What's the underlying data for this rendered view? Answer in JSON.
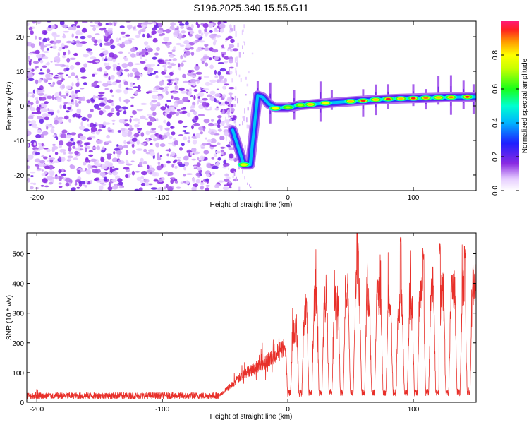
{
  "title": "S196.2025.340.15.55.G11",
  "chart_data": [
    {
      "type": "heatmap",
      "name": "spectrogram",
      "xlabel": "Height of straight line (km)",
      "ylabel": "Frequency (Hz)",
      "xlim": [
        -208,
        150
      ],
      "ylim": [
        -24.5,
        24.5
      ],
      "xticks": [
        -200,
        -100,
        0,
        100
      ],
      "xtick_labels": [
        "-200",
        "-100",
        "0",
        "100"
      ],
      "yticks": [
        -20,
        -10,
        0,
        10,
        20
      ],
      "ytick_labels": [
        "-20",
        "-10",
        "0",
        "10",
        "20"
      ],
      "noise_region_x": [
        -208,
        -45
      ],
      "sparse_region_x": [
        -50,
        -28
      ],
      "ridge": [
        {
          "x": -44,
          "y": -7
        },
        {
          "x": -35,
          "y": -17
        },
        {
          "x": -30,
          "y": -17
        },
        {
          "x": -24,
          "y": 3
        },
        {
          "x": -20,
          "y": 2.5
        },
        {
          "x": -15,
          "y": 0.5
        },
        {
          "x": -10,
          "y": -0.5
        },
        {
          "x": 0,
          "y": -0.5
        },
        {
          "x": 10,
          "y": 0.2
        },
        {
          "x": 20,
          "y": 0.5
        },
        {
          "x": 30,
          "y": 0.8
        },
        {
          "x": 50,
          "y": 1.3
        },
        {
          "x": 70,
          "y": 1.8
        },
        {
          "x": 90,
          "y": 2.1
        },
        {
          "x": 110,
          "y": 2.3
        },
        {
          "x": 130,
          "y": 2.5
        },
        {
          "x": 150,
          "y": 2.6
        }
      ],
      "hot_blobs": [
        {
          "x": -35,
          "y": -17,
          "level": 0.75
        },
        {
          "x": -10,
          "y": -0.7,
          "level": 0.8
        },
        {
          "x": 0,
          "y": -0.4,
          "level": 0.7
        },
        {
          "x": 10,
          "y": 0.2,
          "level": 0.7
        },
        {
          "x": 18,
          "y": 0.4,
          "level": 0.85
        },
        {
          "x": 30,
          "y": 0.8,
          "level": 0.8
        },
        {
          "x": 50,
          "y": 1.3,
          "level": 0.85
        },
        {
          "x": 60,
          "y": 1.5,
          "level": 0.95
        },
        {
          "x": 70,
          "y": 1.8,
          "level": 0.85
        },
        {
          "x": 80,
          "y": 2.0,
          "level": 0.95
        },
        {
          "x": 90,
          "y": 2.1,
          "level": 0.85
        },
        {
          "x": 100,
          "y": 2.2,
          "level": 0.95
        },
        {
          "x": 110,
          "y": 2.3,
          "level": 0.9
        },
        {
          "x": 120,
          "y": 2.4,
          "level": 0.85
        },
        {
          "x": 130,
          "y": 2.5,
          "level": 0.9
        },
        {
          "x": 143,
          "y": 2.6,
          "level": 0.95
        }
      ],
      "vertical_streaks_x": [
        -24,
        -14,
        5,
        26,
        35,
        60,
        70,
        80,
        100,
        110,
        120,
        130,
        140,
        148
      ],
      "colorbar": {
        "label": "Normalized spectral amplitude",
        "range": [
          0,
          1
        ],
        "ticks": [
          0.0,
          0.2,
          0.4,
          0.6,
          0.8
        ],
        "tick_labels": [
          "0.0",
          "0.2",
          "0.4",
          "0.6",
          "0.8"
        ]
      }
    },
    {
      "type": "line",
      "name": "snr",
      "xlabel": "Height of straight line (km)",
      "ylabel": "SNR (10 * v/v)",
      "xlim": [
        -208,
        150
      ],
      "ylim": [
        0,
        570
      ],
      "xticks": [
        -200,
        -100,
        0,
        100
      ],
      "xtick_labels": [
        "-200",
        "-100",
        "0",
        "100"
      ],
      "yticks": [
        0,
        100,
        200,
        300,
        400,
        500
      ],
      "ytick_labels": [
        "0",
        "100",
        "200",
        "300",
        "400",
        "500"
      ],
      "color": "#e8302a",
      "baseline_x": [
        -208,
        -55
      ],
      "baseline_mean": 22,
      "envelope": [
        {
          "x": -208,
          "y": 22
        },
        {
          "x": -55,
          "y": 22
        },
        {
          "x": -45,
          "y": 60
        },
        {
          "x": -35,
          "y": 100
        },
        {
          "x": -25,
          "y": 125
        },
        {
          "x": -15,
          "y": 150
        },
        {
          "x": -5,
          "y": 185
        },
        {
          "x": 5,
          "y": 250
        },
        {
          "x": 15,
          "y": 330
        },
        {
          "x": 25,
          "y": 360
        },
        {
          "x": 35,
          "y": 330
        },
        {
          "x": 45,
          "y": 390
        },
        {
          "x": 55,
          "y": 400
        },
        {
          "x": 65,
          "y": 360
        },
        {
          "x": 75,
          "y": 380
        },
        {
          "x": 85,
          "y": 335
        },
        {
          "x": 95,
          "y": 340
        },
        {
          "x": 105,
          "y": 380
        },
        {
          "x": 115,
          "y": 410
        },
        {
          "x": 125,
          "y": 385
        },
        {
          "x": 135,
          "y": 395
        },
        {
          "x": 150,
          "y": 420
        }
      ],
      "dips_x": [
        1,
        10,
        18,
        26,
        34,
        43,
        51,
        60,
        68,
        77,
        85,
        94,
        102,
        111,
        119,
        127,
        136,
        144
      ],
      "dip_value": 25,
      "peaks": [
        {
          "x": 56,
          "y": 545
        },
        {
          "x": 90,
          "y": 570
        },
        {
          "x": 108,
          "y": 520
        },
        {
          "x": 121,
          "y": 535
        },
        {
          "x": 141,
          "y": 525
        }
      ]
    }
  ]
}
